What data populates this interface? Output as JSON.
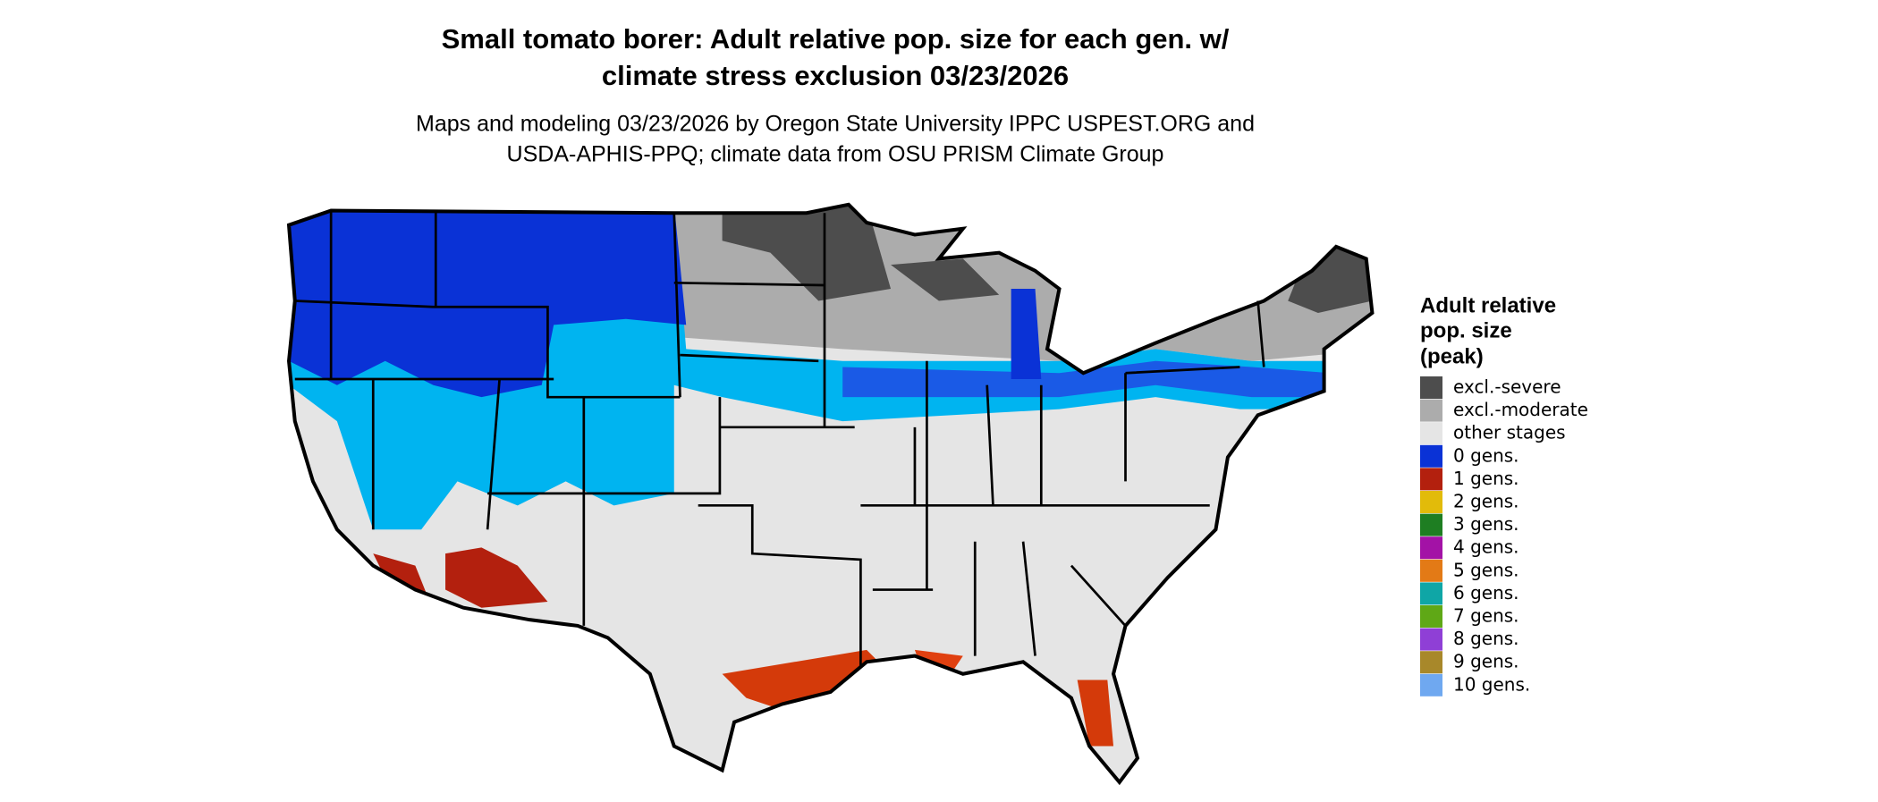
{
  "header": {
    "title": [
      "Small tomato borer: Adult relative pop. size for each gen. w/",
      "climate stress exclusion 03/23/2026"
    ],
    "subtitle": [
      "Maps and modeling 03/23/2026 by Oregon State University IPPC USPEST.ORG and",
      "USDA-APHIS-PPQ; climate data from OSU PRISM Climate Group"
    ]
  },
  "legend": {
    "title": [
      "Adult relative",
      "pop. size",
      "(peak)"
    ],
    "items": [
      {
        "label": "excl.-severe",
        "color": "#4d4d4d"
      },
      {
        "label": "excl.-moderate",
        "color": "#acacac"
      },
      {
        "label": "other stages",
        "color": "#e5e5e5"
      },
      {
        "label": "0 gens.",
        "color": "#0a32d6"
      },
      {
        "label": "1 gens.",
        "color": "#b3200e"
      },
      {
        "label": "2 gens.",
        "color": "#e2bb0a"
      },
      {
        "label": "3 gens.",
        "color": "#1e7e22"
      },
      {
        "label": "4 gens.",
        "color": "#a312a6"
      },
      {
        "label": "5 gens.",
        "color": "#e37a16"
      },
      {
        "label": "6 gens.",
        "color": "#0fa6a6"
      },
      {
        "label": "7 gens.",
        "color": "#5fa816"
      },
      {
        "label": "8 gens.",
        "color": "#8f3fd6"
      },
      {
        "label": "9 gens.",
        "color": "#a8882a"
      },
      {
        "label": "10 gens.",
        "color": "#6fa8f0"
      }
    ]
  }
}
